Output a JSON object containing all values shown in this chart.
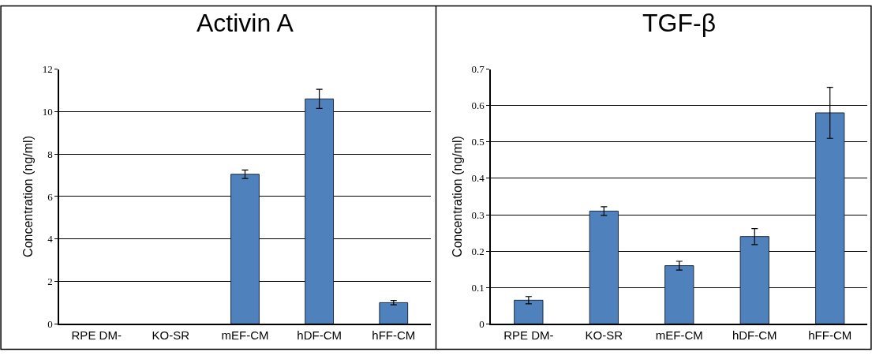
{
  "chart_data": [
    {
      "type": "bar",
      "title": "Activin A",
      "ylabel": "Concentration (ng/ml)",
      "categories": [
        "RPE DM-",
        "KO-SR",
        "mEF-CM",
        "hDF-CM",
        "hFF-CM"
      ],
      "series": [
        {
          "color": "#4f81bd",
          "values": [
            null,
            null,
            7.05,
            10.6,
            1.0
          ],
          "errors": [
            null,
            null,
            0.2,
            0.45,
            0.1
          ]
        }
      ],
      "ylim": [
        0,
        12
      ],
      "yticks": [
        0,
        2,
        4,
        6,
        8,
        10,
        12
      ],
      "grid": "y"
    },
    {
      "type": "bar",
      "title": "TGF-β",
      "ylabel": "Concentration (ng/ml)",
      "categories": [
        "RPE DM-",
        "KO-SR",
        "mEF-CM",
        "hDF-CM",
        "hFF-CM"
      ],
      "series": [
        {
          "color": "#4f81bd",
          "values": [
            0.065,
            0.31,
            0.16,
            0.24,
            0.58
          ],
          "errors": [
            0.01,
            0.012,
            0.012,
            0.022,
            0.07
          ]
        }
      ],
      "ylim": [
        0,
        0.7
      ],
      "yticks": [
        0,
        0.1,
        0.2,
        0.3,
        0.4,
        0.5,
        0.6,
        0.7
      ],
      "grid": "y"
    }
  ]
}
